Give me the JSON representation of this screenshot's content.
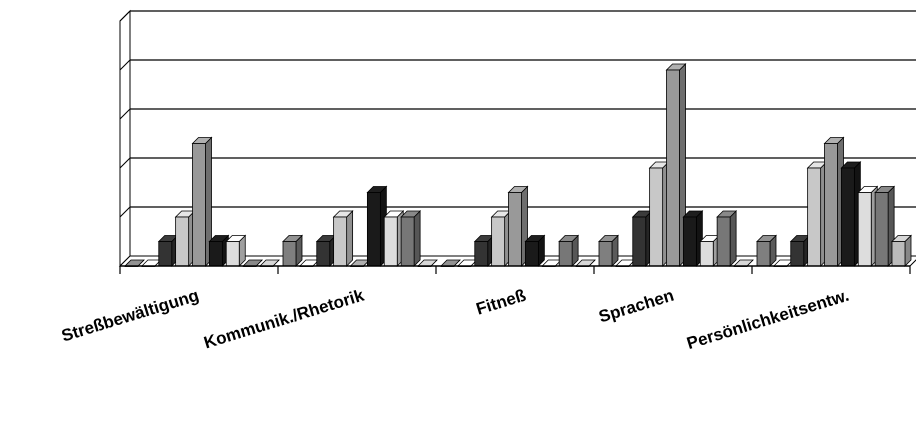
{
  "chart_data": {
    "type": "bar",
    "style": "3d-clustered",
    "categories": [
      "Streßbewältigung",
      "Kommunik./Rhetorik",
      "Fitneß",
      "Sprachen",
      "Persönlichkeitsentw."
    ],
    "series": [
      {
        "values": [
          0,
          1,
          0,
          1,
          1
        ],
        "fill": "#7f7f7f"
      },
      {
        "values": [
          0,
          0,
          0,
          0,
          0
        ],
        "fill": "#e6e6e6"
      },
      {
        "values": [
          1,
          1,
          1,
          2,
          1
        ],
        "fill": "#333333"
      },
      {
        "values": [
          2,
          2,
          2,
          4,
          4
        ],
        "fill": "#c8c8c8"
      },
      {
        "values": [
          5,
          0,
          3,
          8,
          5
        ],
        "fill": "#999999"
      },
      {
        "values": [
          1,
          3,
          1,
          2,
          4
        ],
        "fill": "#1a1a1a"
      },
      {
        "values": [
          1,
          2,
          0,
          1,
          3
        ],
        "fill": "#dddddd"
      },
      {
        "values": [
          0,
          2,
          1,
          2,
          3
        ],
        "fill": "#777777"
      },
      {
        "values": [
          0,
          0,
          0,
          0,
          1
        ],
        "fill": "#bbbbbb"
      }
    ],
    "ylim": [
      0,
      10
    ],
    "y_gridlines": [
      2,
      4,
      6,
      8,
      10
    ],
    "grid": true,
    "legend": "none",
    "title": "",
    "xlabel": "",
    "ylabel": ""
  }
}
